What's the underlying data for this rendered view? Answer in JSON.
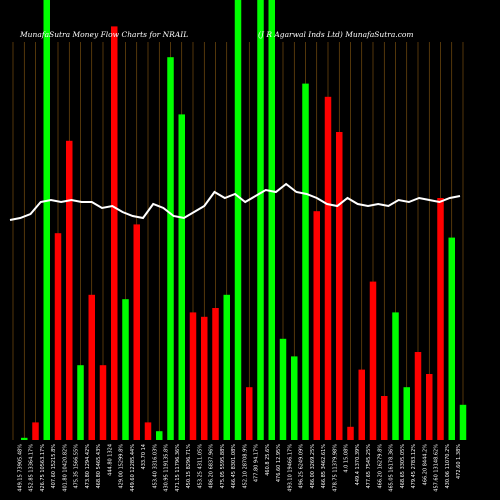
{
  "header": {
    "title_left": "MunafaSutra  Money Flow  Charts for NRAIL",
    "title_right": "(J R Agarwal Inds Ltd) MunafaSutra.com"
  },
  "colors": {
    "background": "#000000",
    "grid": "#8a5a12",
    "up": "#00ff00",
    "down": "#ff0000",
    "line": "#ffffff",
    "label": "#ffffff"
  },
  "chart_data": {
    "type": "bar",
    "note_series": "volume bars (green = up day, red = down day) with price line overlay",
    "bars": [
      {
        "color": "up",
        "height": 0.005
      },
      {
        "color": "down",
        "height": 0.04
      },
      {
        "color": "up",
        "height": 1.0
      },
      {
        "color": "down",
        "height": 0.47
      },
      {
        "color": "down",
        "height": 0.68
      },
      {
        "color": "up",
        "height": 0.17
      },
      {
        "color": "down",
        "height": 0.33
      },
      {
        "color": "down",
        "height": 0.17
      },
      {
        "color": "down",
        "height": 0.94
      },
      {
        "color": "up",
        "height": 0.32
      },
      {
        "color": "down",
        "height": 0.49
      },
      {
        "color": "down",
        "height": 0.04
      },
      {
        "color": "up",
        "height": 0.02
      },
      {
        "color": "up",
        "height": 0.87
      },
      {
        "color": "up",
        "height": 0.74
      },
      {
        "color": "down",
        "height": 0.29
      },
      {
        "color": "down",
        "height": 0.28
      },
      {
        "color": "down",
        "height": 0.3
      },
      {
        "color": "up",
        "height": 0.33
      },
      {
        "color": "up",
        "height": 1.0
      },
      {
        "color": "down",
        "height": 0.12
      },
      {
        "color": "up",
        "height": 1.0
      },
      {
        "color": "up",
        "height": 1.0
      },
      {
        "color": "up",
        "height": 0.23
      },
      {
        "color": "up",
        "height": 0.19
      },
      {
        "color": "up",
        "height": 0.81
      },
      {
        "color": "down",
        "height": 0.52
      },
      {
        "color": "down",
        "height": 0.78
      },
      {
        "color": "down",
        "height": 0.7
      },
      {
        "color": "down",
        "height": 0.03
      },
      {
        "color": "down",
        "height": 0.16
      },
      {
        "color": "down",
        "height": 0.36
      },
      {
        "color": "down",
        "height": 0.1
      },
      {
        "color": "up",
        "height": 0.29
      },
      {
        "color": "up",
        "height": 0.12
      },
      {
        "color": "down",
        "height": 0.2
      },
      {
        "color": "down",
        "height": 0.15
      },
      {
        "color": "down",
        "height": 0.55
      },
      {
        "color": "up",
        "height": 0.46
      },
      {
        "color": "up",
        "height": 0.08
      }
    ],
    "price_line": [
      0.21,
      0.2,
      0.18,
      0.12,
      0.11,
      0.12,
      0.11,
      0.12,
      0.12,
      0.15,
      0.14,
      0.17,
      0.19,
      0.2,
      0.13,
      0.15,
      0.19,
      0.2,
      0.17,
      0.14,
      0.07,
      0.1,
      0.08,
      0.12,
      0.09,
      0.06,
      0.07,
      0.03,
      0.07,
      0.08,
      0.1,
      0.13,
      0.14,
      0.1,
      0.13,
      0.14,
      0.13,
      0.14,
      0.11,
      0.12,
      0.1,
      0.11,
      0.12,
      0.1,
      0.09
    ],
    "x_labels": [
      "449.15 73905.48%",
      "452.85 13364.17%",
      "426.75 10563.17%",
      "407.60 15215.8%",
      "401.80 10420.82%",
      "475.35 1566.55%",
      "473.80 1294.42%",
      "468.80 5465.43%",
      "444.80 1324",
      "429.00 15299.8%",
      "449.60 12285.44%",
      "433.70 14",
      "453.40 3316.03%",
      "430.95 119135.8%",
      "471.15 11796.36%",
      "450.15 8296.71%",
      "453.25 4311.05%",
      "486.20 6837.96%",
      "475.05 5595.88%",
      "466.45 8301.08%",
      "452.10 28708.9%",
      "477.80 94.17%",
      "460.8 25.6%",
      "476.60 12.95%",
      "493.10 19466.17%",
      "496.25 6249.09%",
      "486.00 3269.25%",
      "466.85 3462.61%",
      "478.75 11379.98%",
      "4.0 15.08%",
      "449.4 1370.39%",
      "477.65 7545.25%",
      "466.20 16279.8%",
      "465.05 16178.36%",
      "468.65 3305.05%",
      "479.45 2783.12%",
      "466.20 8444.2%",
      "457.60 13148.62%",
      "430.06 11070.2%",
      "472.60 1.38%"
    ]
  }
}
